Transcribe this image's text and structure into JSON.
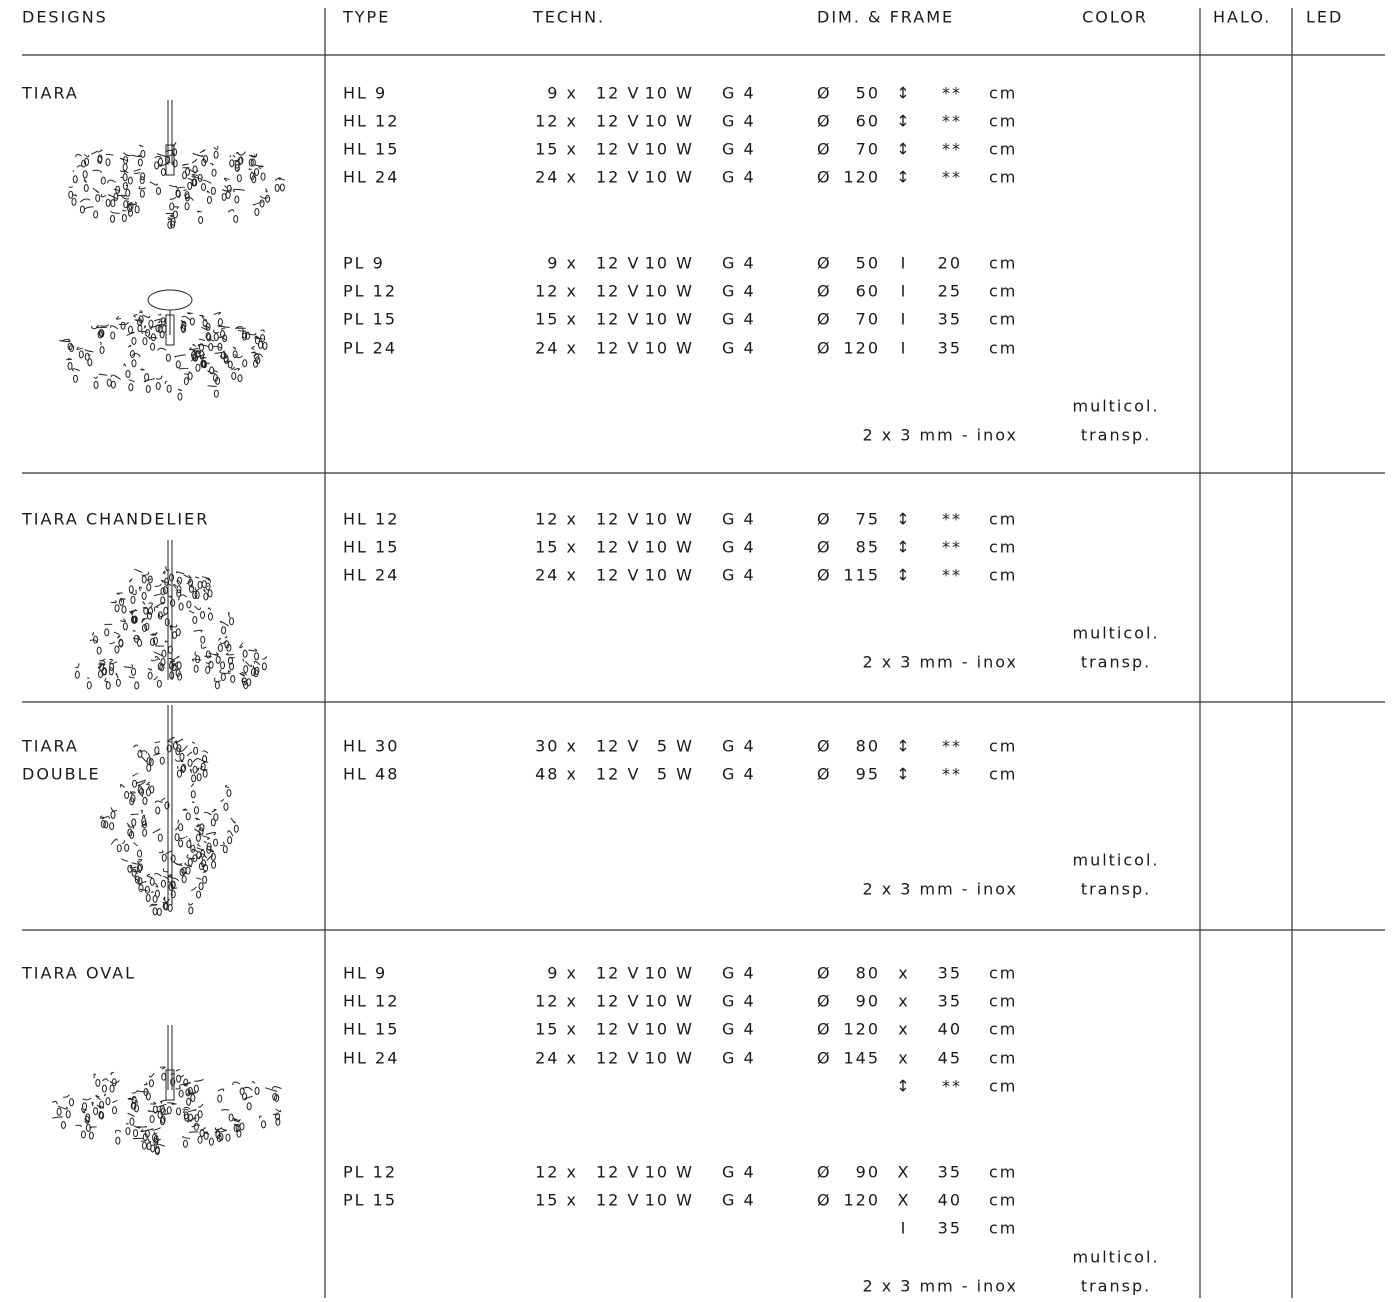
{
  "header": [
    "DESIGNS",
    "TYPE",
    "TECHN.",
    "DIM. & FRAME",
    "COLOR",
    "HALO.",
    "LED"
  ],
  "sections": [
    {
      "name": [
        "TIARA"
      ],
      "rows": [
        {
          "type": "HL 9",
          "count": "9 x",
          "volt": "12 V",
          "watt": "10 W",
          "socket": "G 4",
          "dia_sign": "Ø",
          "dia": "50",
          "sym": "↕",
          "height": "**",
          "unit": "cm"
        },
        {
          "type": "HL 12",
          "count": "12 x",
          "volt": "12 V",
          "watt": "10 W",
          "socket": "G 4",
          "dia_sign": "Ø",
          "dia": "60",
          "sym": "↕",
          "height": "**",
          "unit": "cm"
        },
        {
          "type": "HL 15",
          "count": "15 x",
          "volt": "12 V",
          "watt": "10 W",
          "socket": "G 4",
          "dia_sign": "Ø",
          "dia": "70",
          "sym": "↕",
          "height": "**",
          "unit": "cm"
        },
        {
          "type": "HL 24",
          "count": "24 x",
          "volt": "12 V",
          "watt": "10 W",
          "socket": "G 4",
          "dia_sign": "Ø",
          "dia": "120",
          "sym": "↕",
          "height": "**",
          "unit": "cm"
        },
        {
          "type": "PL 9",
          "count": "9 x",
          "volt": "12 V",
          "watt": "10 W",
          "socket": "G 4",
          "dia_sign": "Ø",
          "dia": "50",
          "sym": "I",
          "height": "20",
          "unit": "cm"
        },
        {
          "type": "PL 12",
          "count": "12 x",
          "volt": "12 V",
          "watt": "10 W",
          "socket": "G 4",
          "dia_sign": "Ø",
          "dia": "60",
          "sym": "I",
          "height": "25",
          "unit": "cm"
        },
        {
          "type": "PL 15",
          "count": "15 x",
          "volt": "12 V",
          "watt": "10 W",
          "socket": "G 4",
          "dia_sign": "Ø",
          "dia": "70",
          "sym": "I",
          "height": "35",
          "unit": "cm"
        },
        {
          "type": "PL 24",
          "count": "24 x",
          "volt": "12 V",
          "watt": "10 W",
          "socket": "G 4",
          "dia_sign": "Ø",
          "dia": "120",
          "sym": "I",
          "height": "35",
          "unit": "cm"
        }
      ],
      "frame": "2 x 3 mm - inox",
      "colors": [
        "multicol.",
        "transp."
      ]
    },
    {
      "name": [
        "TIARA CHANDELIER"
      ],
      "rows": [
        {
          "type": "HL 12",
          "count": "12 x",
          "volt": "12 V",
          "watt": "10 W",
          "socket": "G 4",
          "dia_sign": "Ø",
          "dia": "75",
          "sym": "↕",
          "height": "**",
          "unit": "cm"
        },
        {
          "type": "HL 15",
          "count": "15 x",
          "volt": "12 V",
          "watt": "10 W",
          "socket": "G 4",
          "dia_sign": "Ø",
          "dia": "85",
          "sym": "↕",
          "height": "**",
          "unit": "cm"
        },
        {
          "type": "HL 24",
          "count": "24 x",
          "volt": "12 V",
          "watt": "10 W",
          "socket": "G 4",
          "dia_sign": "Ø",
          "dia": "115",
          "sym": "↕",
          "height": "**",
          "unit": "cm"
        }
      ],
      "frame": "2 x 3 mm - inox",
      "colors": [
        "multicol.",
        "transp."
      ]
    },
    {
      "name": [
        "TIARA",
        "DOUBLE"
      ],
      "rows": [
        {
          "type": "HL 30",
          "count": "30 x",
          "volt": "12 V",
          "watt": "5 W",
          "socket": "G 4",
          "dia_sign": "Ø",
          "dia": "80",
          "sym": "↕",
          "height": "**",
          "unit": "cm"
        },
        {
          "type": "HL 48",
          "count": "48 x",
          "volt": "12 V",
          "watt": "5 W",
          "socket": "G 4",
          "dia_sign": "Ø",
          "dia": "95",
          "sym": "↕",
          "height": "**",
          "unit": "cm"
        }
      ],
      "frame": "2 x 3 mm - inox",
      "colors": [
        "multicol.",
        "transp."
      ]
    },
    {
      "name": [
        "TIARA OVAL"
      ],
      "rows": [
        {
          "type": "HL 9",
          "count": "9 x",
          "volt": "12 V",
          "watt": "10 W",
          "socket": "G 4",
          "dia_sign": "Ø",
          "dia": "80",
          "sym": "x",
          "height": "35",
          "unit": "cm"
        },
        {
          "type": "HL 12",
          "count": "12 x",
          "volt": "12 V",
          "watt": "10 W",
          "socket": "G 4",
          "dia_sign": "Ø",
          "dia": "90",
          "sym": "x",
          "height": "35",
          "unit": "cm"
        },
        {
          "type": "HL 15",
          "count": "15 x",
          "volt": "12 V",
          "watt": "10 W",
          "socket": "G 4",
          "dia_sign": "Ø",
          "dia": "120",
          "sym": "x",
          "height": "40",
          "unit": "cm"
        },
        {
          "type": "HL 24",
          "count": "24 x",
          "volt": "12 V",
          "watt": "10 W",
          "socket": "G 4",
          "dia_sign": "Ø",
          "dia": "145",
          "sym": "x",
          "height": "45",
          "unit": "cm"
        },
        {
          "sym": "↕",
          "height": "**",
          "unit": "cm"
        },
        {
          "type": "PL 12",
          "count": "12 x",
          "volt": "12 V",
          "watt": "10 W",
          "socket": "G 4",
          "dia_sign": "Ø",
          "dia": "90",
          "sym": "X",
          "height": "35",
          "unit": "cm"
        },
        {
          "type": "PL 15",
          "count": "15 x",
          "volt": "12 V",
          "watt": "10 W",
          "socket": "G 4",
          "dia_sign": "Ø",
          "dia": "120",
          "sym": "X",
          "height": "40",
          "unit": "cm"
        },
        {
          "sym": "I",
          "height": "35",
          "unit": "cm"
        }
      ],
      "frame": "2 x 3 mm - inox",
      "colors": [
        "multicol.",
        "transp."
      ]
    }
  ]
}
